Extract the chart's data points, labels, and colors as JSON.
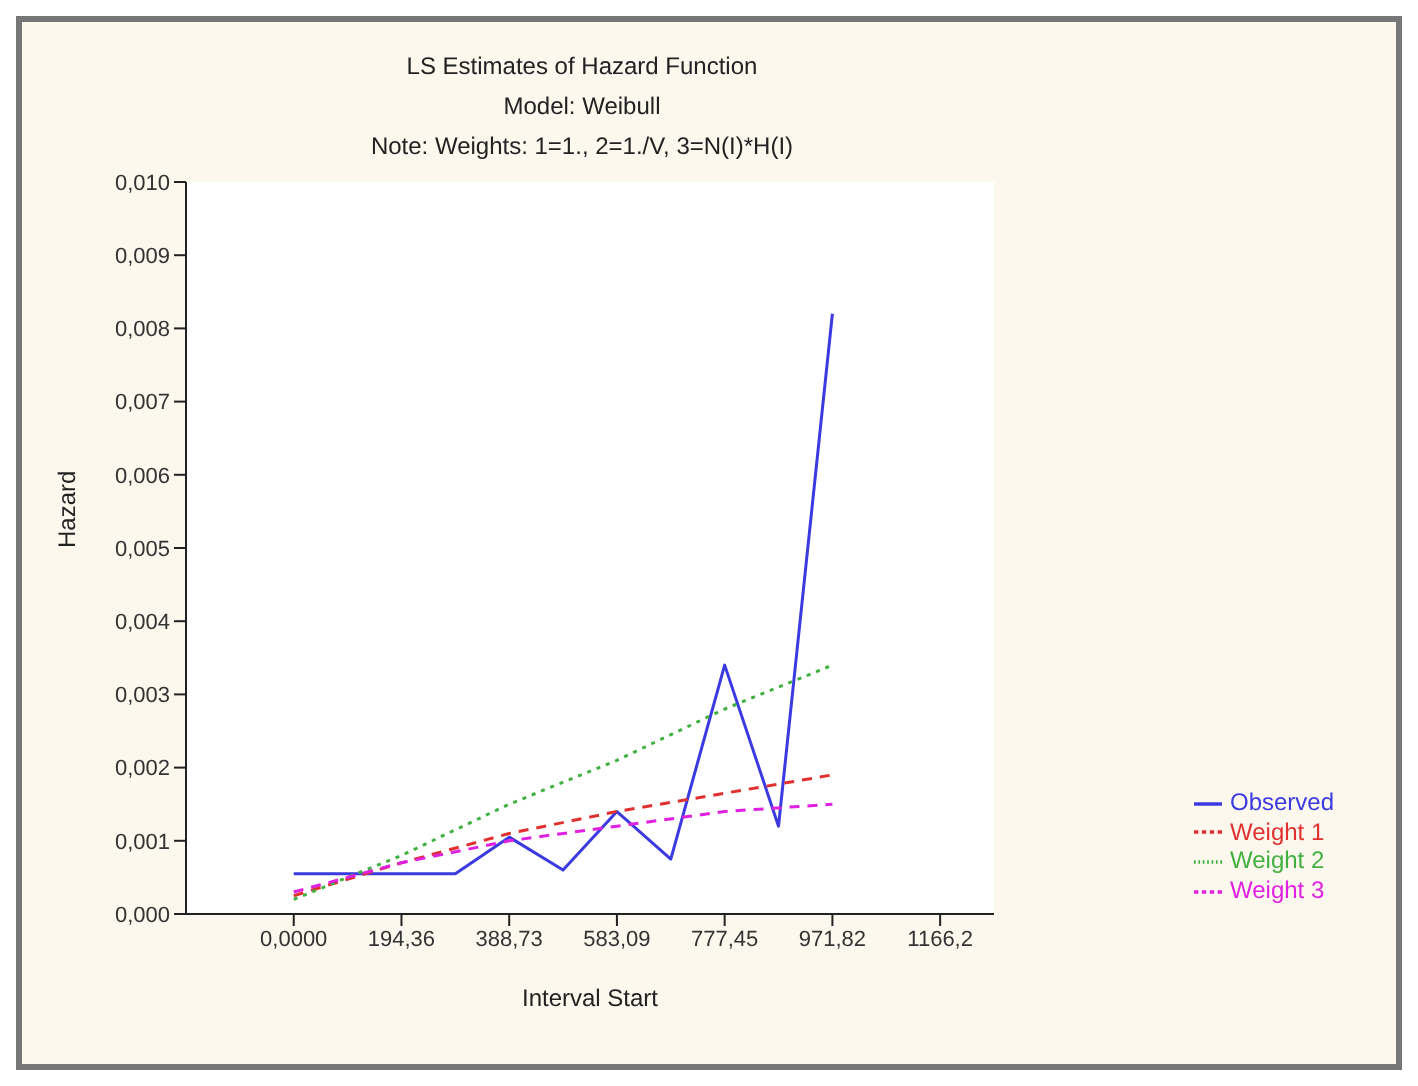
{
  "chart_data": {
    "type": "line",
    "title": "LS Estimates of Hazard Function",
    "subtitle": "Model: Weibull",
    "annotations": [
      "Note: Weights: 1=1., 2=1./V, 3=N(I)*H(I)"
    ],
    "xlabel": "Interval Start",
    "ylabel": "Hazard",
    "xlim": [
      -194.36,
      1263.36
    ],
    "xticks": [
      {
        "value": 0,
        "label": "0,0000"
      },
      {
        "value": 194.36,
        "label": "194,36"
      },
      {
        "value": 388.73,
        "label": "388,73"
      },
      {
        "value": 583.09,
        "label": "583,09"
      },
      {
        "value": 777.45,
        "label": "777,45"
      },
      {
        "value": 971.82,
        "label": "971,82"
      },
      {
        "value": 1166.2,
        "label": "1166,2"
      }
    ],
    "ylim": [
      0,
      0.01
    ],
    "yticks": [
      {
        "value": 0,
        "label": "0,000"
      },
      {
        "value": 0.001,
        "label": "0,001"
      },
      {
        "value": 0.002,
        "label": "0,002"
      },
      {
        "value": 0.003,
        "label": "0,003"
      },
      {
        "value": 0.004,
        "label": "0,004"
      },
      {
        "value": 0.005,
        "label": "0,005"
      },
      {
        "value": 0.006,
        "label": "0,006"
      },
      {
        "value": 0.007,
        "label": "0,007"
      },
      {
        "value": 0.008,
        "label": "0,008"
      },
      {
        "value": 0.009,
        "label": "0,009"
      },
      {
        "value": 0.01,
        "label": "0,010"
      }
    ],
    "grid": false,
    "legend": "bottom right",
    "marker": "none",
    "series": [
      {
        "name": "Observed",
        "color": "#3a3ae0",
        "line_style": "solid",
        "x": [
          0,
          97.18,
          194.36,
          291.54,
          388.73,
          485.91,
          583.09,
          680.27,
          777.45,
          874.63,
          971.82
        ],
        "values": [
          0.00055,
          0.00055,
          0.00055,
          0.00055,
          0.00105,
          0.0006,
          0.0014,
          0.00075,
          0.0034,
          0.0012,
          0.0082
        ]
      },
      {
        "name": "Weight 1",
        "color": "#e03030",
        "line_style": "dashed",
        "x": [
          0,
          194.36,
          388.73,
          583.09,
          777.45,
          971.82
        ],
        "values": [
          0.00025,
          0.0007,
          0.0011,
          0.0014,
          0.00165,
          0.0019
        ]
      },
      {
        "name": "Weight 2",
        "color": "#40b040",
        "line_style": "dotted",
        "x": [
          0,
          194.36,
          388.73,
          583.09,
          777.45,
          971.82
        ],
        "values": [
          0.0002,
          0.0008,
          0.0015,
          0.0021,
          0.0028,
          0.0034
        ]
      },
      {
        "name": "Weight 3",
        "color": "#e020e0",
        "line_style": "dashed",
        "x": [
          0,
          194.36,
          388.73,
          583.09,
          777.45,
          971.82
        ],
        "values": [
          0.0003,
          0.0007,
          0.001,
          0.0012,
          0.0014,
          0.0015
        ]
      }
    ]
  }
}
